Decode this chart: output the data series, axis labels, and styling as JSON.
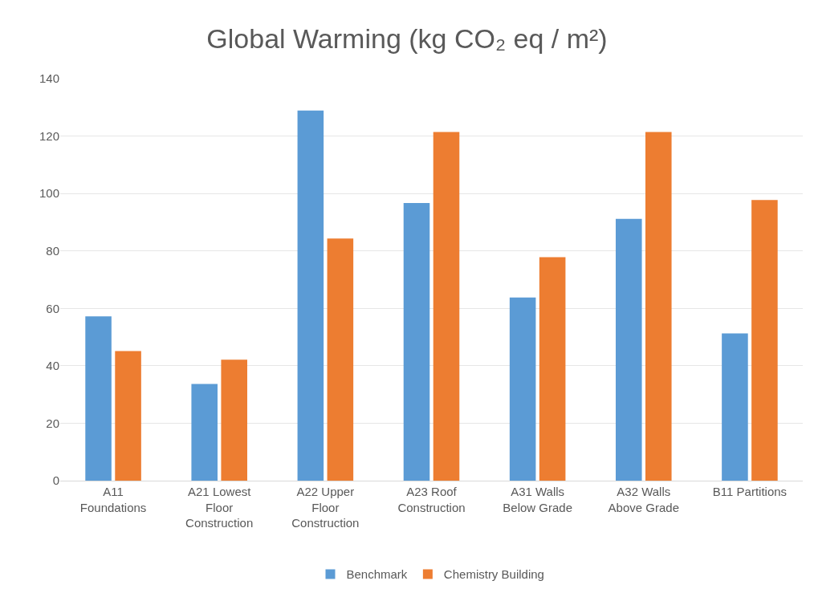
{
  "chart_data": {
    "type": "bar",
    "title": "Global Warming (kg CO₂ eq / m²)",
    "categories": [
      "A11 Foundations",
      "A21 Lowest Floor Construction",
      "A22 Upper Floor Construction",
      "A23 Roof Construction",
      "A31 Walls Below Grade",
      "A32 Walls Above Grade",
      "B11 Partitions"
    ],
    "series": [
      {
        "name": "Benchmark",
        "color": "#5b9bd5",
        "values": [
          57.2,
          33.7,
          128.9,
          96.7,
          63.8,
          91.2,
          51.3
        ]
      },
      {
        "name": "Chemistry Building",
        "color": "#ed7d31",
        "values": [
          45.1,
          42.1,
          84.3,
          121.4,
          77.8,
          121.4,
          97.7
        ]
      }
    ],
    "ylim": [
      0,
      140
    ],
    "yticks": [
      0,
      20,
      40,
      60,
      80,
      100,
      120,
      140
    ],
    "grid": "y",
    "legend": "bottom"
  }
}
